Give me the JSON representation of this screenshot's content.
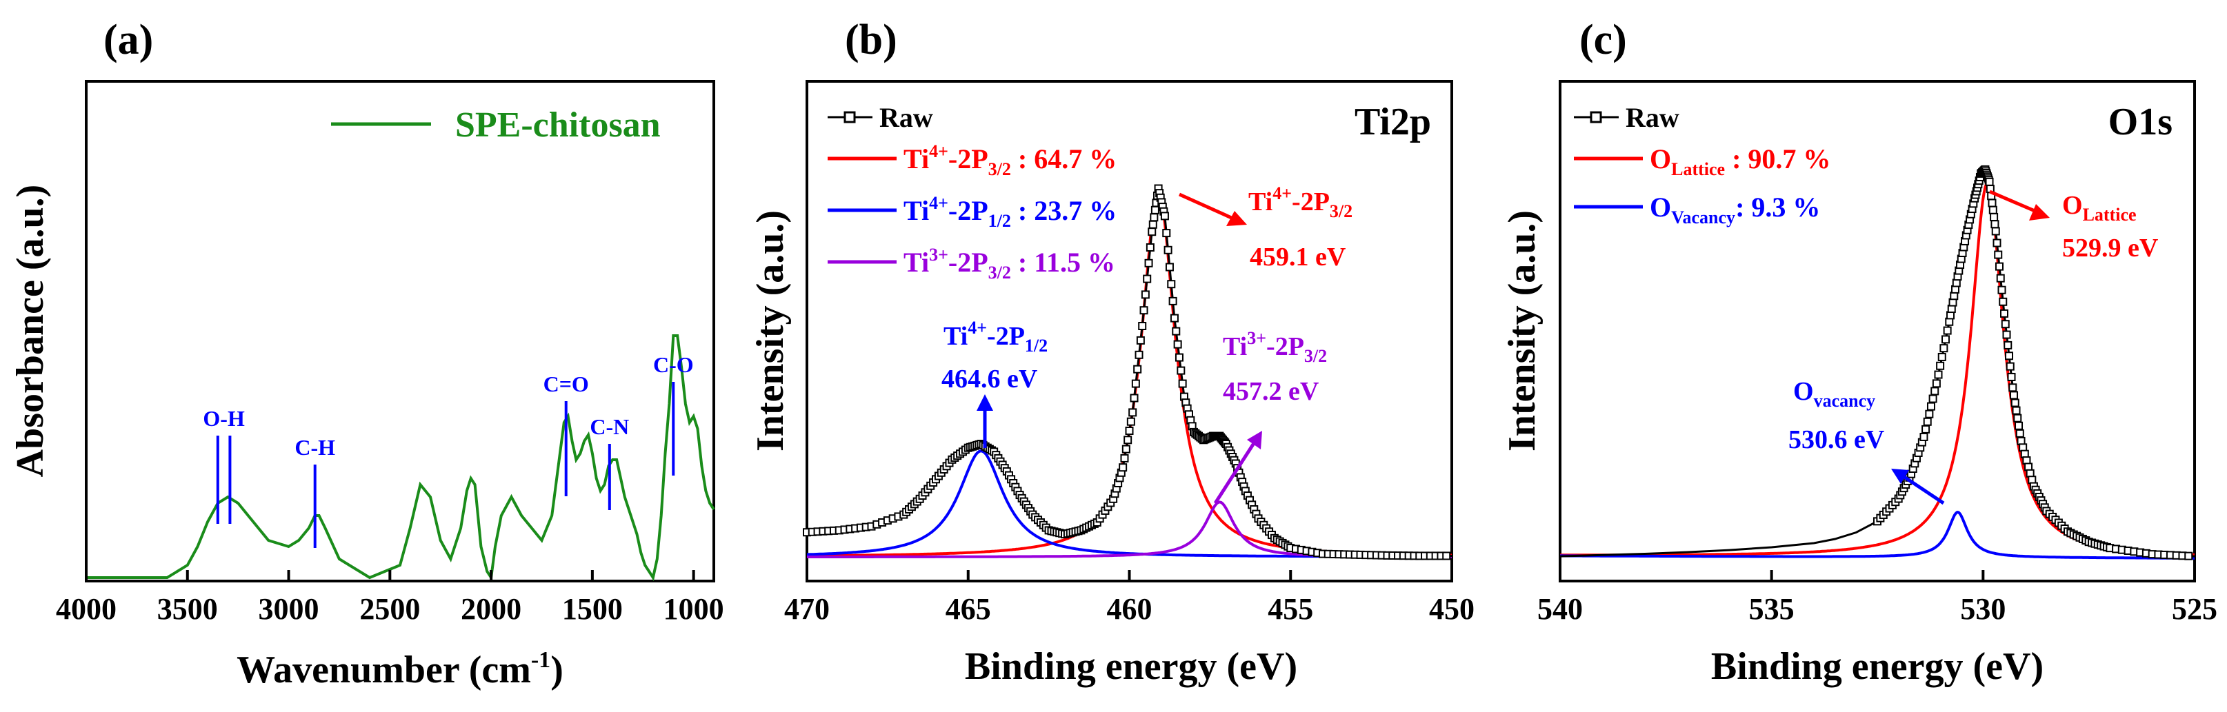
{
  "chart_data": [
    {
      "panel": "(a)",
      "type": "line",
      "title": "",
      "xlabel": "Wavenumber (cm-1)",
      "xlabel_main": "Wavenumber (cm",
      "xlabel_sup": "-1",
      "xlabel_tail": ")",
      "ylabel": "Absorbance (a.u.)",
      "xlim": [
        4000,
        900
      ],
      "ylim": [
        0,
        1
      ],
      "x_ticks": [
        4000,
        3500,
        3000,
        2500,
        2000,
        1500,
        1000
      ],
      "y_ticks_shown": false,
      "legend": {
        "position": "top-right",
        "entries": [
          "SPE-chitosan"
        ]
      },
      "series": [
        {
          "name": "SPE-chitosan",
          "color": "#1a8c1a",
          "x": [
            4000,
            3600,
            3500,
            3450,
            3400,
            3350,
            3300,
            3250,
            3200,
            3100,
            3000,
            2950,
            2900,
            2870,
            2850,
            2820,
            2750,
            2600,
            2450,
            2400,
            2350,
            2300,
            2250,
            2200,
            2150,
            2120,
            2100,
            2080,
            2050,
            2020,
            2000,
            1980,
            1950,
            1900,
            1850,
            1800,
            1750,
            1700,
            1660,
            1640,
            1620,
            1600,
            1580,
            1560,
            1540,
            1520,
            1500,
            1480,
            1460,
            1440,
            1420,
            1400,
            1380,
            1360,
            1340,
            1320,
            1300,
            1280,
            1260,
            1240,
            1220,
            1200,
            1180,
            1160,
            1140,
            1120,
            1100,
            1080,
            1060,
            1040,
            1020,
            1000,
            980,
            960,
            940,
            920,
            900
          ],
          "y": [
            0.0,
            0.0,
            0.02,
            0.05,
            0.09,
            0.12,
            0.13,
            0.12,
            0.1,
            0.06,
            0.05,
            0.06,
            0.08,
            0.1,
            0.1,
            0.08,
            0.03,
            0.0,
            0.02,
            0.08,
            0.15,
            0.13,
            0.06,
            0.03,
            0.08,
            0.14,
            0.16,
            0.15,
            0.05,
            0.01,
            0.0,
            0.05,
            0.1,
            0.13,
            0.1,
            0.08,
            0.06,
            0.1,
            0.2,
            0.25,
            0.26,
            0.22,
            0.19,
            0.2,
            0.22,
            0.23,
            0.2,
            0.16,
            0.14,
            0.15,
            0.18,
            0.19,
            0.19,
            0.16,
            0.13,
            0.11,
            0.09,
            0.07,
            0.04,
            0.02,
            0.01,
            0.0,
            0.03,
            0.1,
            0.2,
            0.28,
            0.39,
            0.39,
            0.34,
            0.28,
            0.25,
            0.26,
            0.24,
            0.18,
            0.14,
            0.12,
            0.11
          ]
        }
      ],
      "peak_markers": [
        {
          "label": "O-H",
          "x": [
            3350,
            3290
          ]
        },
        {
          "label": "C-H",
          "x": [
            2870
          ]
        },
        {
          "label": "C=O",
          "x": [
            1630
          ]
        },
        {
          "label": "C-N",
          "x": [
            1415
          ]
        },
        {
          "label": "C-O",
          "x": [
            1100
          ]
        }
      ]
    },
    {
      "panel": "(b)",
      "type": "line",
      "title": "Ti2p",
      "xlabel": "Binding energy (eV)",
      "ylabel": "Intensity (a.u.)",
      "xlim": [
        470,
        450
      ],
      "ylim": [
        0,
        1
      ],
      "x_ticks": [
        470,
        465,
        460,
        455,
        450
      ],
      "y_ticks_shown": false,
      "legend": {
        "position": "top-left"
      },
      "raw": {
        "name": "Raw",
        "color": "#000000",
        "x": [
          470,
          469,
          468,
          467,
          466.5,
          466,
          465.5,
          465,
          464.6,
          464.2,
          463.8,
          463.4,
          463,
          462.5,
          462,
          461.5,
          461,
          460.5,
          460.2,
          459.9,
          459.6,
          459.3,
          459.1,
          458.9,
          458.6,
          458.3,
          458,
          457.7,
          457.4,
          457.2,
          457,
          456.7,
          456.4,
          456,
          455.5,
          455,
          454,
          453,
          452,
          451,
          450
        ],
        "y": [
          0.075,
          0.08,
          0.09,
          0.12,
          0.16,
          0.21,
          0.26,
          0.29,
          0.3,
          0.28,
          0.23,
          0.17,
          0.12,
          0.08,
          0.07,
          0.08,
          0.1,
          0.16,
          0.24,
          0.38,
          0.6,
          0.84,
          0.95,
          0.88,
          0.62,
          0.42,
          0.33,
          0.31,
          0.32,
          0.32,
          0.3,
          0.25,
          0.18,
          0.11,
          0.06,
          0.035,
          0.02,
          0.018,
          0.016,
          0.015,
          0.015
        ]
      },
      "components": [
        {
          "name": "Ti4+-2P3/2",
          "percent": 64.7,
          "color": "#ff0000",
          "center": 459.1,
          "height": 0.93,
          "width": 0.65
        },
        {
          "name": "Ti4+-2P1/2",
          "percent": 23.7,
          "color": "#0000ff",
          "center": 464.6,
          "height": 0.27,
          "width": 0.85
        },
        {
          "name": "Ti3+-2P3/2",
          "percent": 11.5,
          "color": "#9900dd",
          "center": 457.2,
          "height": 0.14,
          "width": 0.55
        }
      ],
      "legend_entries": [
        {
          "text": "Raw",
          "color": "#000000"
        },
        {
          "base": "Ti",
          "sup": "4+",
          "mid": "-2P",
          "sub": "3/2",
          "tail": " : 64.7 %",
          "color": "#ff0000"
        },
        {
          "base": "Ti",
          "sup": "4+",
          "mid": "-2P",
          "sub": "1/2",
          "tail": " : 23.7 %",
          "color": "#0000ff"
        },
        {
          "base": "Ti",
          "sup": "3+",
          "mid": "-2P",
          "sub": "3/2",
          "tail": " : 11.5 %",
          "color": "#9900dd"
        }
      ],
      "annotations": [
        {
          "base": "Ti",
          "sup": "4+",
          "mid": "-2P",
          "sub": "3/2",
          "value": "459.1 eV",
          "color": "#ff0000"
        },
        {
          "base": "Ti",
          "sup": "4+",
          "mid": "-2P",
          "sub": "1/2",
          "value": "464.6 eV",
          "color": "#0000ff"
        },
        {
          "base": "Ti",
          "sup": "3+",
          "mid": "-2P",
          "sub": "3/2",
          "value": "457.2 eV",
          "color": "#9900dd"
        }
      ]
    },
    {
      "panel": "(c)",
      "type": "line",
      "title": "O1s",
      "xlabel": "Binding energy (eV)",
      "ylabel": "Intensity (a.u.)",
      "xlim": [
        540,
        525
      ],
      "ylim": [
        0,
        1
      ],
      "x_ticks": [
        540,
        535,
        530,
        525
      ],
      "y_ticks_shown": false,
      "legend": {
        "position": "top-left"
      },
      "raw": {
        "name": "Raw",
        "color": "#000000",
        "x": [
          540,
          539,
          538,
          537,
          536,
          535,
          534,
          533.5,
          533,
          532.5,
          532,
          531.7,
          531.4,
          531.1,
          530.8,
          530.6,
          530.4,
          530.2,
          530.05,
          529.95,
          529.85,
          529.7,
          529.5,
          529.3,
          529.1,
          528.8,
          528.5,
          528,
          527.5,
          527,
          526,
          525
        ],
        "y": [
          0.03,
          0.033,
          0.036,
          0.04,
          0.045,
          0.052,
          0.062,
          0.072,
          0.088,
          0.115,
          0.17,
          0.23,
          0.32,
          0.45,
          0.6,
          0.71,
          0.81,
          0.9,
          0.96,
          0.97,
          0.94,
          0.82,
          0.62,
          0.44,
          0.31,
          0.2,
          0.14,
          0.09,
          0.065,
          0.05,
          0.035,
          0.03
        ],
        "markers_span": [
          532.5,
          525
        ]
      },
      "components": [
        {
          "name": "OLattice",
          "percent": 90.7,
          "color": "#ff0000",
          "center": 529.9,
          "height": 0.91,
          "width": 0.48
        },
        {
          "name": "OVacancy",
          "percent": 9.3,
          "color": "#0000ff",
          "center": 530.6,
          "height": 0.11,
          "width": 0.28
        }
      ],
      "legend_entries": [
        {
          "text": "Raw",
          "color": "#000000"
        },
        {
          "base": "O",
          "sub": "Lattice",
          "tail": " : 90.7 %",
          "color": "#ff0000"
        },
        {
          "base": "O",
          "sub": "Vacancy",
          "tail": ": 9.3 %",
          "color": "#0000ff"
        }
      ],
      "annotations": [
        {
          "base": "O",
          "sub": "Lattice",
          "value": "529.9 eV",
          "color": "#ff0000"
        },
        {
          "base": "O",
          "sub": "vacancy",
          "value": "530.6 eV",
          "color": "#0000ff"
        }
      ]
    }
  ]
}
